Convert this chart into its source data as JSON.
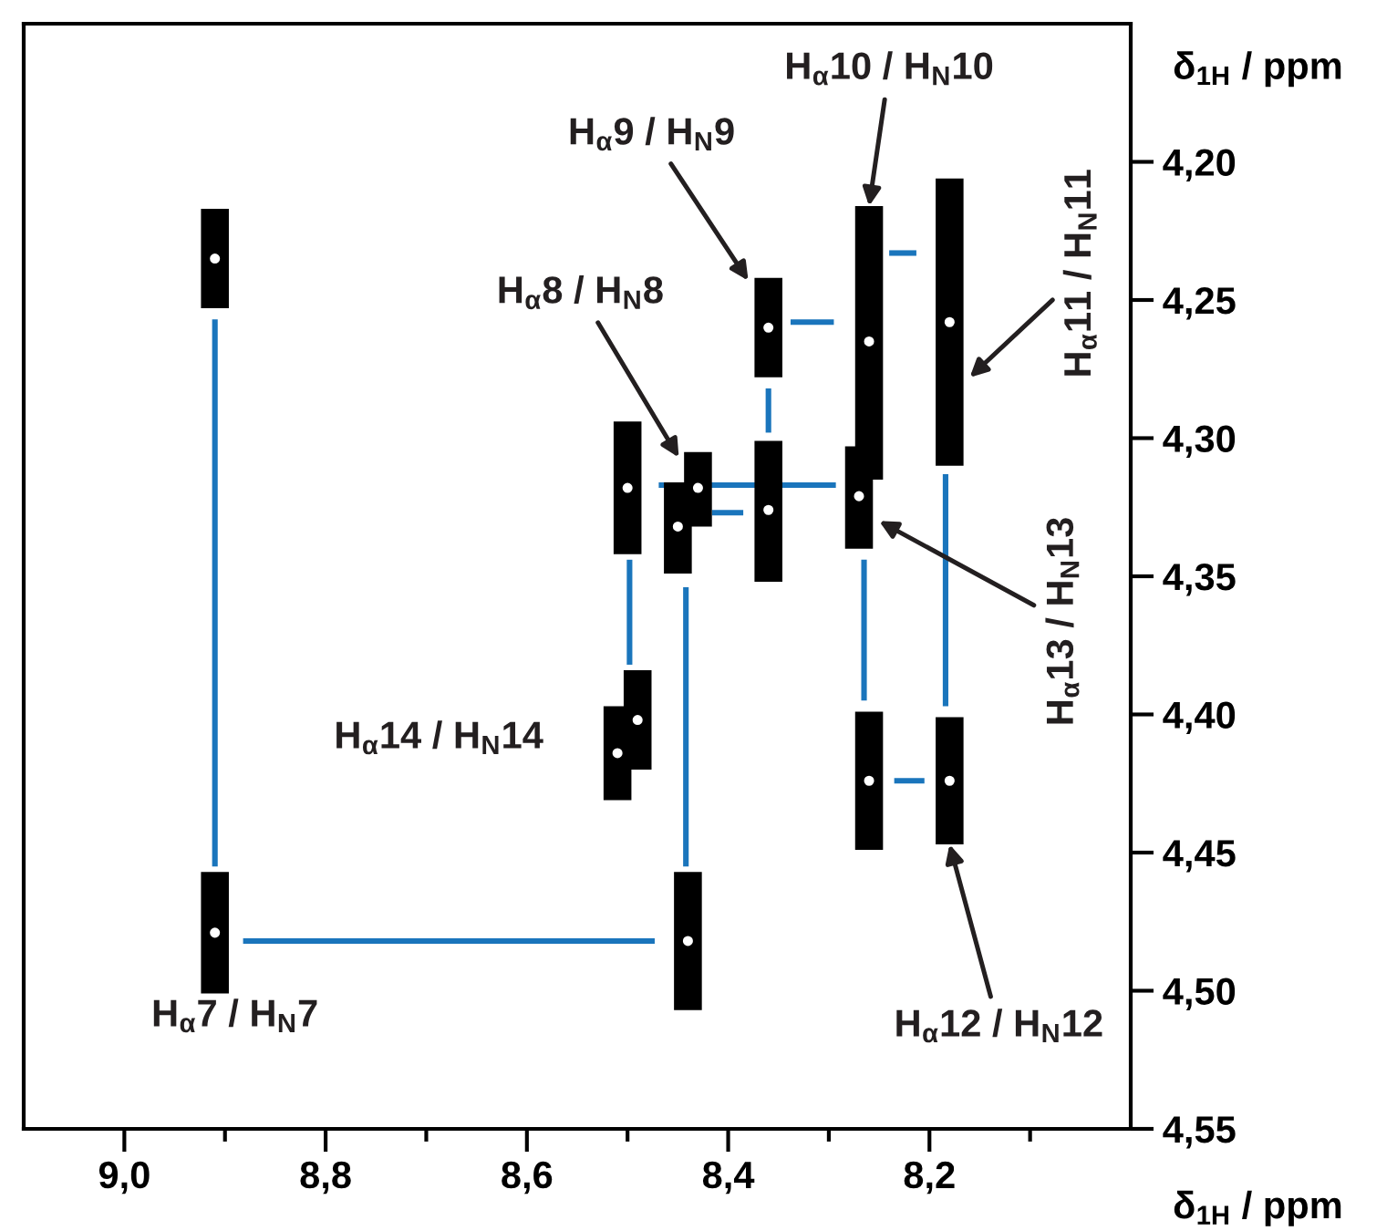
{
  "chart_data": {
    "type": "scatter",
    "xlabel": "δ$_{1H}$ / ppm",
    "ylabel": "δ$_{1H}$ / ppm",
    "xlim": [
      9.1,
      8.0
    ],
    "xticks": [
      {
        "value": 9.0,
        "label": "9,0"
      },
      {
        "value": 8.9,
        "label": null
      },
      {
        "value": 8.8,
        "label": "8,8"
      },
      {
        "value": 8.7,
        "label": null
      },
      {
        "value": 8.6,
        "label": "8,6"
      },
      {
        "value": 8.5,
        "label": null
      },
      {
        "value": 8.4,
        "label": "8,4"
      },
      {
        "value": 8.3,
        "label": null
      },
      {
        "value": 8.2,
        "label": "8,2"
      },
      {
        "value": 8.1,
        "label": null
      }
    ],
    "ylim": [
      4.55,
      4.15
    ],
    "yticks": [
      {
        "value": 4.2,
        "label": "4,20"
      },
      {
        "value": 4.25,
        "label": "4,25"
      },
      {
        "value": 4.3,
        "label": "4,30"
      },
      {
        "value": 4.35,
        "label": "4,35"
      },
      {
        "value": 4.4,
        "label": "4,40"
      },
      {
        "value": 4.45,
        "label": "4,45"
      },
      {
        "value": 4.5,
        "label": "4,50"
      },
      {
        "value": 4.55,
        "label": "4,55"
      }
    ],
    "grid": false,
    "legend": false,
    "series": [
      {
        "type": "scatter",
        "color": "#000000",
        "marker": "circle",
        "x": [
          8.91,
          8.91,
          8.5,
          8.45,
          8.43,
          8.51,
          8.49,
          8.44,
          8.36,
          8.36,
          8.26,
          8.27,
          8.18,
          8.26,
          8.18
        ],
        "values": [
          4.235,
          4.479,
          4.318,
          4.332,
          4.318,
          4.414,
          4.402,
          4.482,
          4.26,
          4.326,
          4.265,
          4.321,
          4.258,
          4.424,
          4.424
        ],
        "errors": [
          [
            4.217,
            4.253
          ],
          [
            4.457,
            4.501
          ],
          [
            4.294,
            4.342
          ],
          [
            4.316,
            4.349
          ],
          [
            4.305,
            4.332
          ],
          [
            4.397,
            4.431
          ],
          [
            4.384,
            4.42
          ],
          [
            4.457,
            4.507
          ],
          [
            4.242,
            4.278
          ],
          [
            4.301,
            4.352
          ],
          [
            4.216,
            4.315
          ],
          [
            4.303,
            4.34
          ],
          [
            4.206,
            4.31
          ],
          [
            4.399,
            4.449
          ],
          [
            4.401,
            4.447
          ]
        ]
      },
      {
        "type": "line",
        "color": "#1a75bc",
        "x": [
          8.91,
          8.91
        ],
        "values": [
          4.257,
          4.455
        ]
      },
      {
        "type": "line",
        "color": "#1a75bc",
        "x": [
          8.882,
          8.473
        ],
        "values": [
          4.482,
          4.482
        ]
      },
      {
        "type": "line",
        "color": "#1a75bc",
        "x": [
          8.442,
          8.442
        ],
        "values": [
          4.354,
          4.455
        ]
      },
      {
        "type": "line",
        "color": "#1a75bc",
        "x": [
          8.498,
          8.498
        ],
        "values": [
          4.344,
          4.382
        ]
      },
      {
        "type": "line",
        "color": "#1a75bc",
        "x": [
          8.469,
          8.293
        ],
        "values": [
          4.317,
          4.317
        ]
      },
      {
        "type": "line",
        "color": "#1a75bc",
        "x": [
          8.416,
          8.385
        ],
        "values": [
          4.327,
          4.327
        ]
      },
      {
        "type": "line",
        "color": "#1a75bc",
        "x": [
          8.36,
          8.36
        ],
        "values": [
          4.282,
          4.298
        ]
      },
      {
        "type": "line",
        "color": "#1a75bc",
        "x": [
          8.338,
          8.295
        ],
        "values": [
          4.258,
          4.258
        ]
      },
      {
        "type": "line",
        "color": "#1a75bc",
        "x": [
          8.24,
          8.213
        ],
        "values": [
          4.233,
          4.233
        ]
      },
      {
        "type": "line",
        "color": "#1a75bc",
        "x": [
          8.265,
          8.265
        ],
        "values": [
          4.344,
          4.395
        ]
      },
      {
        "type": "line",
        "color": "#1a75bc",
        "x": [
          8.184,
          8.184
        ],
        "values": [
          4.313,
          4.397
        ]
      },
      {
        "type": "line",
        "color": "#1a75bc",
        "x": [
          8.235,
          8.205
        ],
        "values": [
          4.424,
          4.424
        ]
      }
    ],
    "annotations": [
      {
        "text": "H$_{α}$10 / H$_{N}$10",
        "x": 8.26,
        "y": 4.216
      },
      {
        "text": "H$_{α}$9 / H$_{N}$9",
        "x": 8.38,
        "y": 4.243
      },
      {
        "text": "H$_{α}$8 / H$_{N}$8",
        "x": 8.449,
        "y": 4.307
      },
      {
        "text": "H$_{α}$11 / H$_{N}$11",
        "x": 8.16,
        "y": 4.278
      },
      {
        "text": "H$_{α}$13 / H$_{N}$13",
        "x": 8.25,
        "y": 4.33
      },
      {
        "text": "H$_{α}$12 / H$_{N}$12",
        "x": 8.18,
        "y": 4.447
      },
      {
        "text": "H$_{α}$14 / H$_{N}$14",
        "x": 8.51,
        "y": 4.414
      },
      {
        "text": "H$_{α}$7 / H$_{N}$7",
        "x": 8.91,
        "y": 4.479
      }
    ]
  }
}
